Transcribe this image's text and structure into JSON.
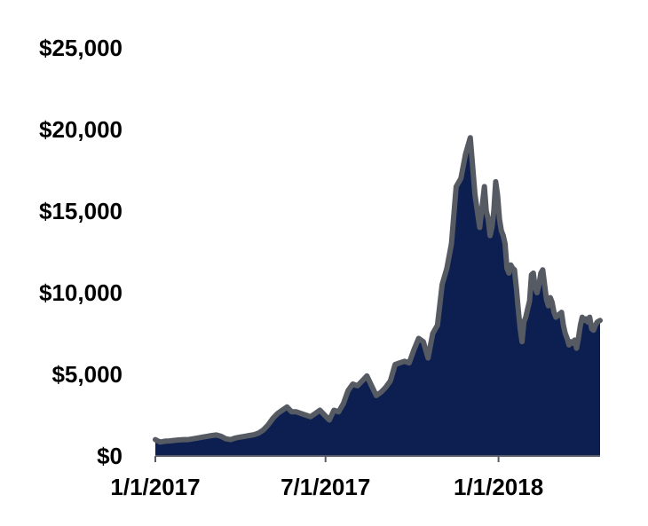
{
  "chart_data": {
    "type": "area",
    "title": "",
    "xlabel": "",
    "ylabel": "",
    "ylim": [
      0,
      25000
    ],
    "yticks": [
      0,
      5000,
      10000,
      15000,
      20000,
      25000
    ],
    "ytick_labels": [
      "$0",
      "$5,000",
      "$10,000",
      "$15,000",
      "$20,000",
      "$25,000"
    ],
    "xlim": [
      0,
      473
    ],
    "xticks": [
      0,
      181,
      365
    ],
    "xtick_labels": [
      "1/1/2017",
      "7/1/2017",
      "1/1/2018"
    ],
    "grid": false,
    "legend": "none",
    "colors": {
      "fill": "#0c1f50",
      "line": "#555a63",
      "axis": "#555a63",
      "text": "#000000"
    },
    "x": [
      0,
      5,
      10,
      15,
      20,
      25,
      30,
      35,
      40,
      45,
      50,
      55,
      60,
      65,
      70,
      75,
      80,
      85,
      90,
      95,
      100,
      105,
      110,
      115,
      120,
      125,
      130,
      135,
      140,
      145,
      150,
      155,
      160,
      165,
      170,
      175,
      180,
      185,
      190,
      195,
      200,
      205,
      210,
      215,
      220,
      225,
      230,
      235,
      240,
      245,
      250,
      255,
      260,
      265,
      270,
      275,
      280,
      285,
      290,
      295,
      300,
      305,
      310,
      315,
      320,
      325,
      330,
      335,
      340,
      345,
      348,
      350,
      352,
      354,
      356,
      358,
      360,
      362,
      364,
      366,
      368,
      370,
      372,
      374,
      376,
      378,
      380,
      382,
      384,
      386,
      388,
      390,
      392,
      394,
      396,
      398,
      400,
      402,
      404,
      406,
      408,
      410,
      412,
      414,
      416,
      418,
      420,
      422,
      424,
      426,
      428,
      430,
      432,
      434,
      436,
      438,
      440,
      442,
      444,
      446,
      448,
      450,
      452,
      454,
      456,
      458,
      460,
      462,
      464,
      466,
      468,
      470,
      473
    ],
    "values": [
      1000,
      850,
      900,
      920,
      950,
      980,
      1000,
      1000,
      1050,
      1100,
      1150,
      1200,
      1250,
      1280,
      1200,
      1050,
      1000,
      1100,
      1150,
      1200,
      1250,
      1300,
      1400,
      1600,
      1900,
      2300,
      2600,
      2800,
      3000,
      2700,
      2700,
      2600,
      2500,
      2400,
      2600,
      2800,
      2500,
      2200,
      2800,
      2700,
      3200,
      4000,
      4400,
      4300,
      4600,
      4900,
      4300,
      3700,
      3900,
      4200,
      4600,
      5600,
      5700,
      5800,
      5700,
      6500,
      7200,
      7000,
      6000,
      7500,
      8000,
      10500,
      11500,
      13000,
      16500,
      17000,
      18500,
      19500,
      16000,
      14000,
      15500,
      16500,
      15000,
      14500,
      13500,
      14000,
      15000,
      16800,
      16000,
      14500,
      13800,
      13500,
      13000,
      11500,
      11200,
      11700,
      11500,
      11400,
      10300,
      9000,
      7800,
      7000,
      8200,
      8500,
      9000,
      9500,
      11100,
      11200,
      10300,
      10000,
      10500,
      11200,
      11400,
      10500,
      9600,
      9200,
      9700,
      9400,
      8800,
      8500,
      8600,
      8700,
      8800,
      8000,
      7500,
      7200,
      6800,
      7000,
      6900,
      7100,
      6600,
      7200,
      8000,
      8500,
      8300,
      8400,
      8200,
      8500,
      7800,
      7700,
      8000,
      8200,
      8300
    ]
  }
}
